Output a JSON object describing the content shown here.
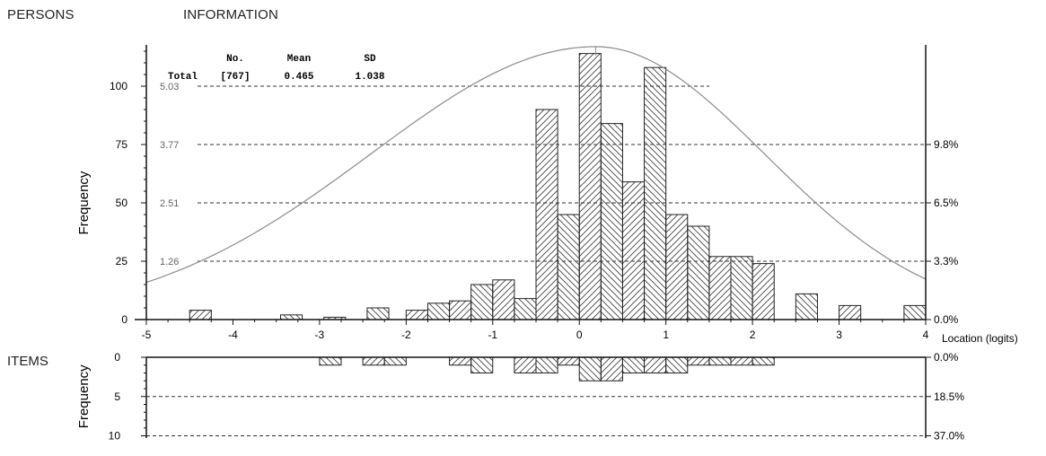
{
  "header": {
    "persons": "PERSONS",
    "information": "INFORMATION",
    "items": "ITEMS"
  },
  "stats": {
    "headers": [
      "No.",
      "Mean",
      "SD"
    ],
    "row_label": "Total",
    "no": "[767]",
    "mean": "0.465",
    "sd": "1.038"
  },
  "chart_data": [
    {
      "type": "bar",
      "panel": "persons",
      "ylabel": "Frequency",
      "xlabel": "Location (logits)",
      "xlim": [
        -5,
        4
      ],
      "ylim": [
        0,
        120
      ],
      "x_ticks": [
        "-5",
        "-4",
        "-3",
        "-2",
        "-1",
        "0",
        "1",
        "2",
        "3",
        "4"
      ],
      "y_ticks": [
        "0",
        "25",
        "50",
        "75",
        "100"
      ],
      "info_ticks": [
        "1.26",
        "2.51",
        "3.77",
        "5.03"
      ],
      "right_ticks": [
        "0.0%",
        "3.3%",
        "6.5%",
        "9.8%"
      ],
      "bin_width": 0.25,
      "bin_starts": [
        -4.5,
        -3.45,
        -2.95,
        -2.45,
        -2.0,
        -1.75,
        -1.5,
        -1.25,
        -1.0,
        -0.75,
        -0.5,
        -0.25,
        0.0,
        0.25,
        0.5,
        0.75,
        1.0,
        1.25,
        1.5,
        1.75,
        2.0,
        2.5,
        3.0,
        3.75
      ],
      "values": [
        4,
        2,
        1,
        5,
        4,
        7,
        8,
        15,
        17,
        9,
        90,
        45,
        114,
        84,
        59,
        108,
        45,
        40,
        27,
        27,
        24,
        11,
        6,
        6
      ],
      "information_curve": {
        "peak_location": 0.19,
        "peak_information": 5.03,
        "points": [
          [
            -5,
            0.4
          ],
          [
            -4,
            0.98
          ],
          [
            -3,
            1.92
          ],
          [
            -2,
            3.01
          ],
          [
            -1,
            4.27
          ],
          [
            0,
            5.0
          ],
          [
            1,
            4.36
          ],
          [
            2,
            2.86
          ],
          [
            3,
            1.53
          ],
          [
            4,
            0.62
          ]
        ]
      }
    },
    {
      "type": "bar",
      "panel": "items",
      "ylabel": "Frequency",
      "xlim": [
        -5,
        4
      ],
      "ylim": [
        0,
        10
      ],
      "inverted": true,
      "y_ticks": [
        "0",
        "5",
        "10"
      ],
      "right_ticks": [
        "0.0%",
        "18.5%",
        "37.0%"
      ],
      "bin_width": 0.25,
      "bin_starts": [
        -3.0,
        -2.5,
        -2.25,
        -1.5,
        -1.25,
        -0.75,
        -0.5,
        -0.25,
        0.0,
        0.25,
        0.5,
        0.75,
        1.0,
        1.25,
        1.5,
        1.75,
        2.0
      ],
      "values": [
        1,
        1,
        1,
        1,
        2,
        2,
        2,
        1,
        3,
        3,
        2,
        2,
        2,
        1,
        1,
        1,
        1
      ]
    }
  ]
}
